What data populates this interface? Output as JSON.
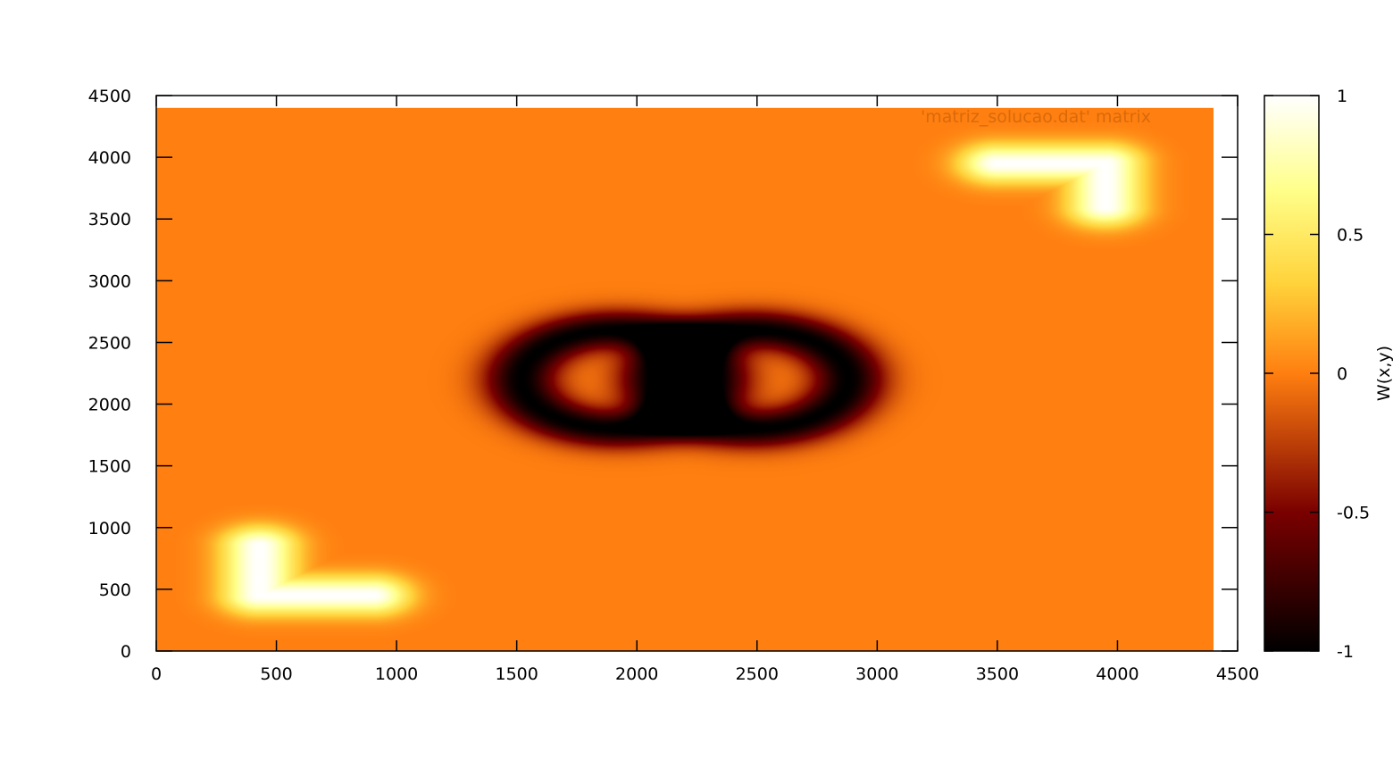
{
  "chart_data": {
    "type": "heatmap",
    "title": "",
    "xlabel": "",
    "ylabel": "",
    "xlim": [
      0,
      4500
    ],
    "ylim": [
      0,
      4500
    ],
    "data_extent": {
      "x": [
        0,
        4400
      ],
      "y": [
        0,
        4400
      ]
    },
    "xticks": [
      "0",
      "500",
      "1000",
      "1500",
      "2000",
      "2500",
      "3000",
      "3500",
      "4000",
      "4500"
    ],
    "yticks": [
      "0",
      "500",
      "1000",
      "1500",
      "2000",
      "2500",
      "3000",
      "3500",
      "4000",
      "4500"
    ],
    "legend": {
      "label": "'matriz_solucao.dat' matrix",
      "placement": "top-right"
    },
    "colorbar": {
      "label": "W(x,y)",
      "range": [
        -1,
        1
      ],
      "ticks": [
        "1",
        "0.5",
        "0",
        "-0.5",
        "-1"
      ],
      "palette": [
        "#000000",
        "#7a0000",
        "#ff7f10",
        "#ffd23a",
        "#ffff8a",
        "#ffffff"
      ]
    },
    "background_value": 0,
    "features": [
      {
        "kind": "positive-L",
        "value": 1,
        "segments": [
          [
            [
              430,
              450
            ],
            [
              430,
              850
            ]
          ],
          [
            [
              430,
              450
            ],
            [
              900,
              450
            ]
          ]
        ]
      },
      {
        "kind": "positive-L",
        "value": 1,
        "segments": [
          [
            [
              3500,
              3950
            ],
            [
              3950,
              3950
            ]
          ],
          [
            [
              3950,
              3950
            ],
            [
              3950,
              3600
            ]
          ]
        ]
      },
      {
        "kind": "negative-ring",
        "value": -1,
        "center": [
          1920,
          2200
        ],
        "radius": 400
      },
      {
        "kind": "negative-ring",
        "value": -1,
        "center": [
          2480,
          2200
        ],
        "radius": 400
      }
    ]
  }
}
